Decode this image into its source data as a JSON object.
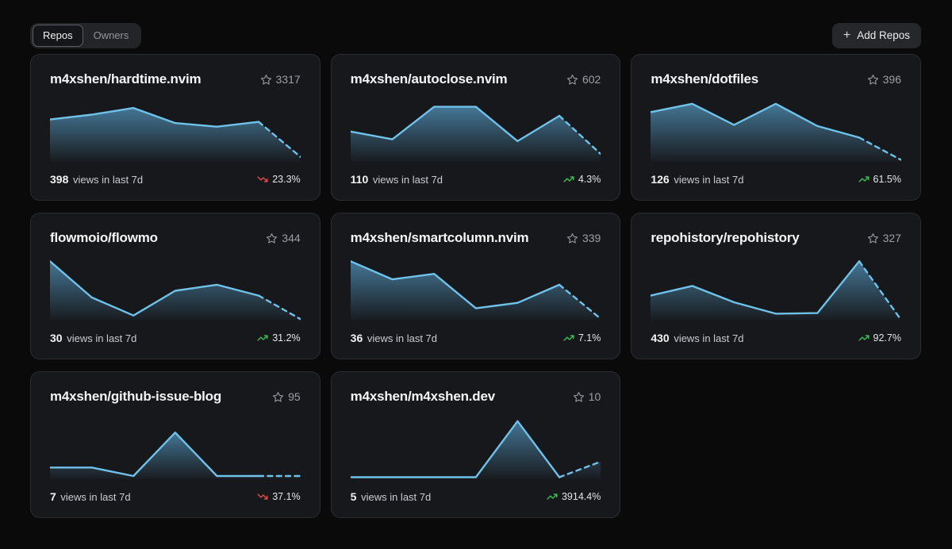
{
  "theme": {
    "chart_line": "#6fc2ea",
    "chart_fill": "#4c87ab",
    "trend_up_green": "#3fbf54",
    "trend_down_red": "#e5484d",
    "card_background": "#17181b",
    "page_background": "#0a0a0b"
  },
  "header": {
    "tabs": [
      {
        "label": "Repos",
        "active": true
      },
      {
        "label": "Owners",
        "active": false
      }
    ],
    "add_button": {
      "plus": "+",
      "label": "Add Repos"
    }
  },
  "shared": {
    "views_suffix": "views in last 7d"
  },
  "cards": [
    {
      "name": "m4xshen/hardtime.nvim",
      "stars": "3317",
      "views": "398",
      "percent": "23.3%",
      "trend": "down",
      "chart": {
        "type": "area",
        "values": [
          69,
          77,
          88,
          63,
          57,
          65,
          7
        ],
        "dashed_from": 5
      }
    },
    {
      "name": "m4xshen/autoclose.nvim",
      "stars": "602",
      "views": "110",
      "percent": "4.3%",
      "trend": "up",
      "chart": {
        "type": "area",
        "values": [
          49,
          36,
          90,
          90,
          33,
          75,
          11
        ],
        "dashed_from": 5
      }
    },
    {
      "name": "m4xshen/dotfiles",
      "stars": "396",
      "views": "126",
      "percent": "61.5%",
      "trend": "up",
      "chart": {
        "type": "area",
        "values": [
          81,
          95,
          60,
          95,
          58,
          39,
          2
        ],
        "dashed_from": 5
      }
    },
    {
      "name": "flowmoio/flowmo",
      "stars": "344",
      "views": "30",
      "percent": "31.2%",
      "trend": "up",
      "chart": {
        "type": "area",
        "values": [
          97,
          37,
          7,
          48,
          58,
          40,
          1
        ],
        "dashed_from": 5
      }
    },
    {
      "name": "m4xshen/smartcolumn.nvim",
      "stars": "339",
      "views": "36",
      "percent": "7.1%",
      "trend": "up",
      "chart": {
        "type": "area",
        "values": [
          97,
          67,
          76,
          19,
          28,
          58,
          1
        ],
        "dashed_from": 5
      }
    },
    {
      "name": "repohistory/repohistory",
      "stars": "327",
      "views": "430",
      "percent": "92.7%",
      "trend": "up",
      "chart": {
        "type": "area",
        "values": [
          40,
          56,
          29,
          10,
          11,
          97,
          0
        ],
        "dashed_from": 5
      }
    },
    {
      "name": "m4xshen/github-issue-blog",
      "stars": "95",
      "views": "7",
      "percent": "37.1%",
      "trend": "down",
      "chart": {
        "type": "area",
        "values": [
          18,
          18,
          4,
          76,
          4,
          4,
          4
        ],
        "dashed_from": 5
      }
    },
    {
      "name": "m4xshen/m4xshen.dev",
      "stars": "10",
      "views": "5",
      "percent": "3914.4%",
      "trend": "up",
      "chart": {
        "type": "area",
        "values": [
          2,
          2,
          2,
          2,
          95,
          2,
          28
        ],
        "dashed_from": 5
      }
    }
  ]
}
